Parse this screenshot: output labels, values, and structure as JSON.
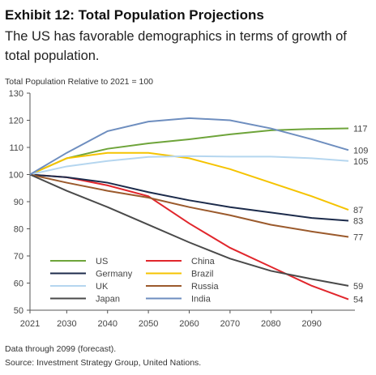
{
  "chart_data": {
    "type": "line",
    "title": "Exhibit 12: Total Population Projections",
    "subtitle": [
      "The US has favorable demographics in terms of growth of",
      "total population."
    ],
    "y_label": "Total Population Relative to 2021 = 100",
    "notes": [
      "Data through 2099 (forecast).",
      "Source: Investment Strategy Group, United Nations."
    ],
    "x": [
      2021,
      2030,
      2040,
      2050,
      2060,
      2070,
      2080,
      2090,
      2099
    ],
    "xlim": [
      2021,
      2099
    ],
    "xticks": [
      2021,
      2030,
      2040,
      2050,
      2060,
      2070,
      2080,
      2090
    ],
    "ylim": [
      50,
      130
    ],
    "yticks": [
      50,
      60,
      70,
      80,
      90,
      100,
      110,
      120,
      130
    ],
    "series": [
      {
        "name": "US",
        "color": "#6ea43a",
        "values": [
          100,
          106,
          109.5,
          111.5,
          113,
          114.8,
          116.3,
          116.8,
          117
        ]
      },
      {
        "name": "China",
        "color": "#e1262c",
        "values": [
          100,
          99,
          96,
          92,
          82,
          73,
          66,
          59,
          54
        ]
      },
      {
        "name": "Germany",
        "color": "#1c2b4b",
        "values": [
          100,
          99,
          97,
          93.5,
          90.5,
          88,
          86,
          84,
          83
        ]
      },
      {
        "name": "Brazil",
        "color": "#f5c300",
        "values": [
          100,
          106,
          108,
          108,
          106,
          102,
          97,
          92,
          87
        ]
      },
      {
        "name": "UK",
        "color": "#b5d6ef",
        "values": [
          100,
          103,
          105,
          106.5,
          106.8,
          106.6,
          106.6,
          106,
          105
        ]
      },
      {
        "name": "Russia",
        "color": "#9b5a2c",
        "values": [
          100,
          97,
          94,
          91.5,
          88,
          85,
          81.5,
          79,
          77
        ]
      },
      {
        "name": "Japan",
        "color": "#4a4a4a",
        "values": [
          100,
          94,
          88,
          81.5,
          75,
          69,
          64.5,
          61.5,
          59
        ]
      },
      {
        "name": "India",
        "color": "#6e8ebf",
        "values": [
          100,
          108,
          116,
          119.5,
          120.8,
          120,
          117,
          113,
          109
        ]
      }
    ]
  }
}
